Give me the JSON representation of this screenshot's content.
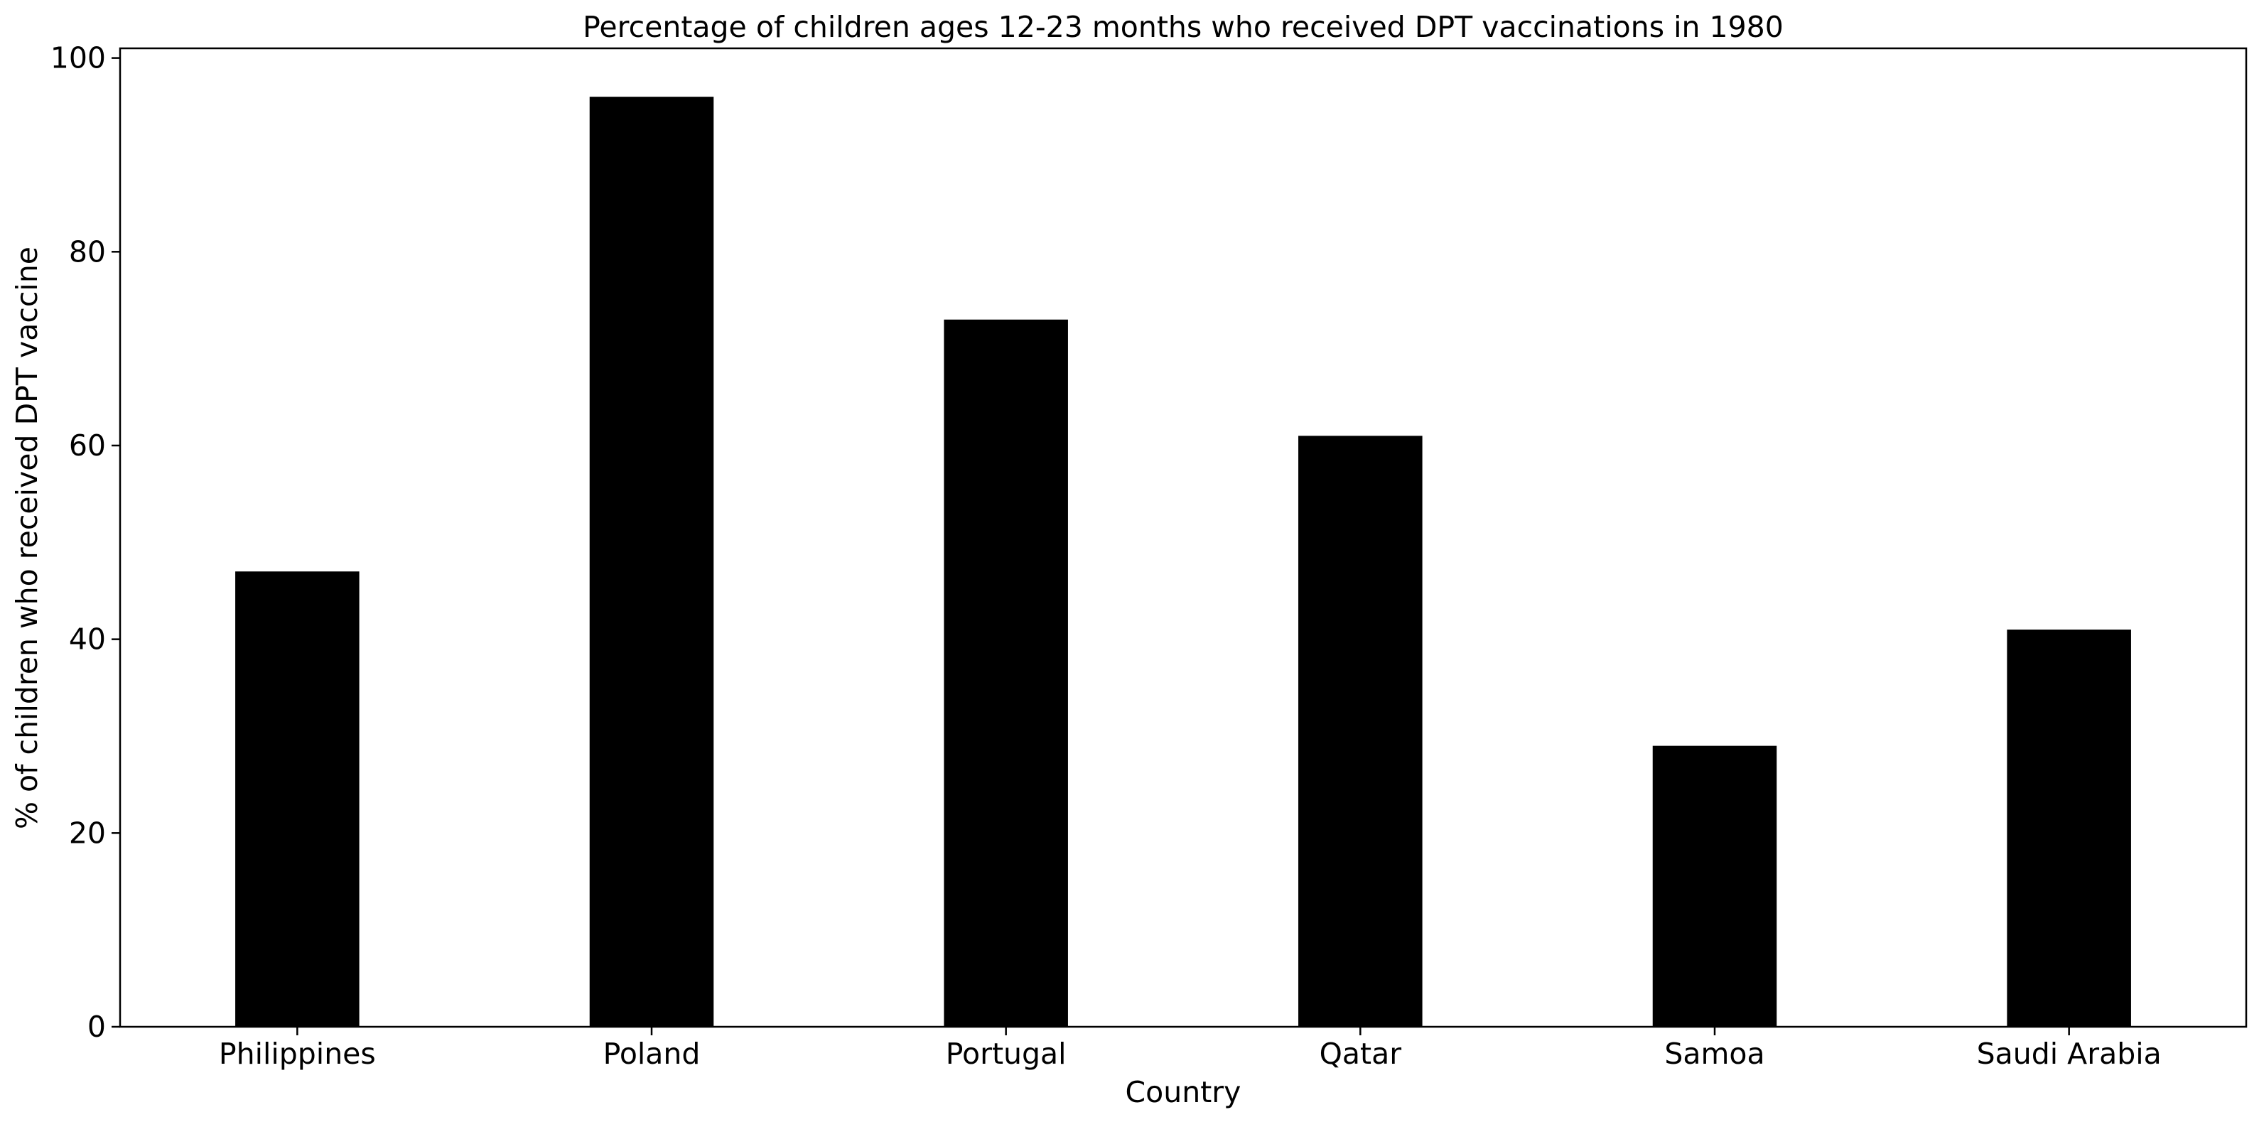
{
  "chart_data": {
    "type": "bar",
    "title": "Percentage of children ages 12-23 months who received DPT vaccinations in 1980",
    "xlabel": "Country",
    "ylabel": "% of children who received DPT vaccine",
    "categories": [
      "Philippines",
      "Poland",
      "Portugal",
      "Qatar",
      "Samoa",
      "Saudi Arabia"
    ],
    "values": [
      47,
      96,
      73,
      61,
      29,
      41
    ],
    "ylim": [
      0,
      101
    ],
    "yticks": [
      0,
      20,
      40,
      60,
      80,
      100
    ],
    "bar_color": "#000000",
    "grid": false,
    "legend": "none"
  }
}
